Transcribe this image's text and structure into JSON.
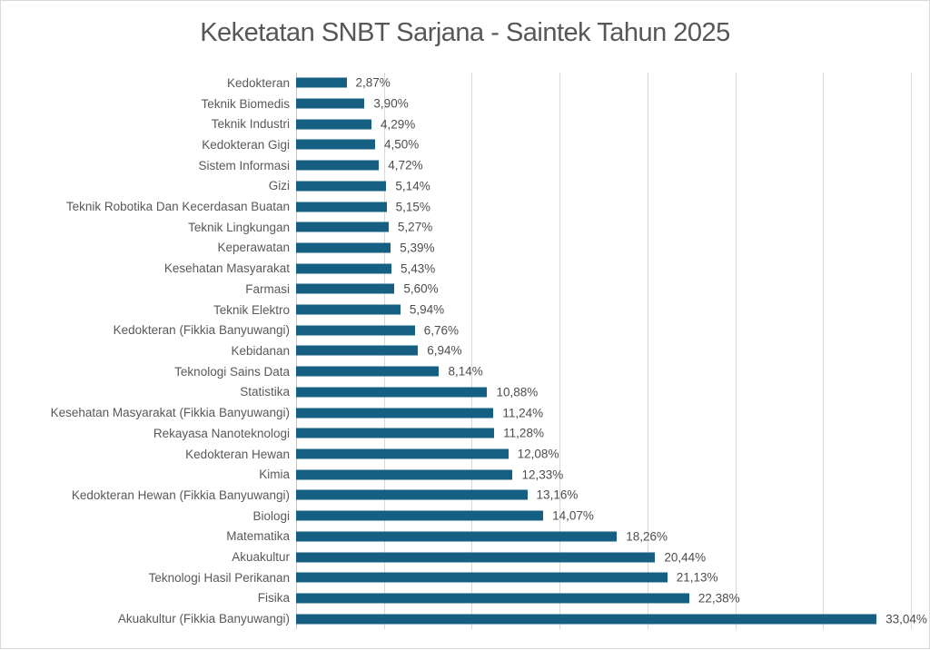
{
  "chart_data": {
    "type": "bar",
    "orientation": "horizontal",
    "title": "Keketatan SNBT Sarjana - Saintek Tahun 2025",
    "categories": [
      "Kedokteran",
      "Teknik Biomedis",
      "Teknik Industri",
      "Kedokteran Gigi",
      "Sistem Informasi",
      "Gizi",
      "Teknik Robotika Dan Kecerdasan Buatan",
      "Teknik Lingkungan",
      "Keperawatan",
      "Kesehatan Masyarakat",
      "Farmasi",
      "Teknik Elektro",
      "Kedokteran (Fikkia Banyuwangi)",
      "Kebidanan",
      "Teknologi Sains Data",
      "Statistika",
      "Kesehatan Masyarakat (Fikkia Banyuwangi)",
      "Rekayasa Nanoteknologi",
      "Kedokteran Hewan",
      "Kimia",
      "Kedokteran Hewan (Fikkia Banyuwangi)",
      "Biologi",
      "Matematika",
      "Akuakultur",
      "Teknologi Hasil Perikanan",
      "Fisika",
      "Akuakultur (Fikkia Banyuwangi)"
    ],
    "values": [
      2.87,
      3.9,
      4.29,
      4.5,
      4.72,
      5.14,
      5.15,
      5.27,
      5.39,
      5.43,
      5.6,
      5.94,
      6.76,
      6.94,
      8.14,
      10.88,
      11.24,
      11.28,
      12.08,
      12.33,
      13.16,
      14.07,
      18.26,
      20.44,
      21.13,
      22.38,
      33.04
    ],
    "value_labels": [
      "2,87%",
      "3,90%",
      "4,29%",
      "4,50%",
      "4,72%",
      "5,14%",
      "5,15%",
      "5,27%",
      "5,39%",
      "5,43%",
      "5,60%",
      "5,94%",
      "6,76%",
      "6,94%",
      "8,14%",
      "10,88%",
      "11,24%",
      "11,28%",
      "12,08%",
      "12,33%",
      "13,16%",
      "14,07%",
      "18,26%",
      "20,44%",
      "21,13%",
      "22,38%",
      "33,04%"
    ],
    "xlabel": "",
    "ylabel": "",
    "xlim": [
      0,
      35
    ],
    "gridline_step": 5,
    "grid": true,
    "legend": "none",
    "x_tick_labels_visible": false,
    "colors": {
      "bar": "#156082",
      "gridline": "#D9D9D9",
      "axis_line": "#C6C6C6",
      "category_label": "#595959",
      "value_label": "#4D4D4D",
      "title": "#575757",
      "background": "#FFFFFF",
      "border": "#D9D9D9"
    }
  }
}
